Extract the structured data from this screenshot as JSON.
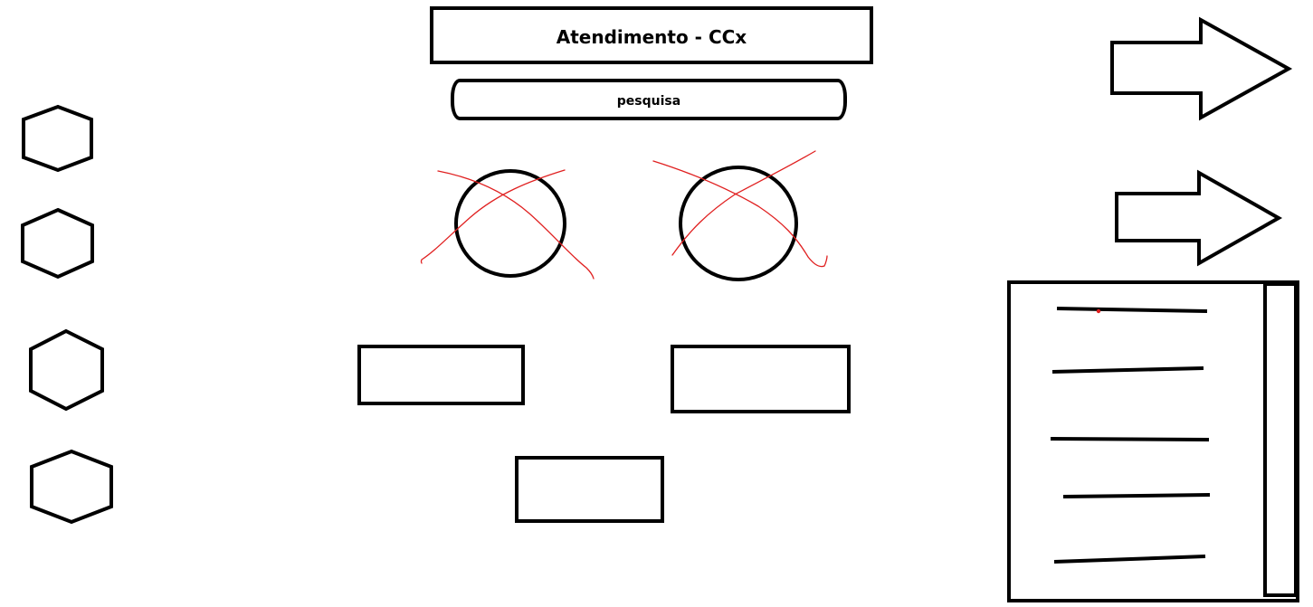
{
  "header": {
    "title": "Atendimento - CCx"
  },
  "search": {
    "label": "pesquisa"
  },
  "colors": {
    "stroke": "#000000",
    "cross_out": "#e02020",
    "background": "#ffffff"
  },
  "icons": {
    "left_column": [
      "hexagon-icon",
      "hexagon-icon",
      "hexagon-icon",
      "hexagon-icon"
    ],
    "right_column": [
      "arrow-right-icon",
      "arrow-right-icon"
    ],
    "list_panel": "document-icon"
  }
}
